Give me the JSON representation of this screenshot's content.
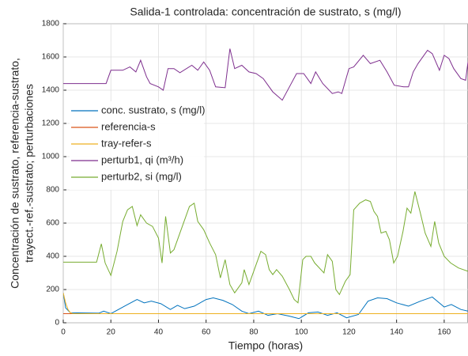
{
  "chart_data": {
    "type": "line",
    "title": "Salida-1 controlada: concentración de sustrato, s (mg/l)",
    "xlabel": "Tiempo (horas)",
    "ylabel": [
      "Concentración de sustrato, referencia-sustrato,",
      "trayect.-ref.-sustrato; perturbaciones"
    ],
    "xlim": [
      0,
      170
    ],
    "xticks": [
      0,
      20,
      40,
      60,
      80,
      100,
      120,
      140,
      160
    ],
    "ylim": [
      0,
      1800
    ],
    "yticks": [
      0,
      200,
      400,
      600,
      800,
      1000,
      1200,
      1400,
      1600,
      1800
    ],
    "grid": true,
    "legend": "upper left",
    "series": [
      {
        "name": "conc. sustrato, s (mg/l)",
        "color": "#0072bd",
        "x": [
          0,
          1,
          3,
          15,
          17,
          20,
          27,
          31,
          34,
          37,
          41,
          45,
          48,
          51,
          55,
          60,
          63,
          67,
          71,
          75,
          78,
          82,
          86,
          90,
          95,
          99,
          103,
          107,
          111,
          115,
          119,
          124,
          128,
          132,
          136,
          140,
          145,
          150,
          155,
          160,
          163,
          167,
          170
        ],
        "values": [
          180,
          90,
          60,
          58,
          70,
          55,
          110,
          140,
          120,
          130,
          115,
          80,
          105,
          85,
          100,
          140,
          150,
          135,
          110,
          70,
          55,
          70,
          45,
          55,
          40,
          25,
          60,
          65,
          45,
          60,
          30,
          50,
          130,
          150,
          145,
          120,
          100,
          130,
          155,
          95,
          110,
          80,
          70
        ]
      },
      {
        "name": "referencia-s",
        "color": "#d95319",
        "x": [
          0,
          170
        ],
        "values": [
          55,
          55
        ]
      },
      {
        "name": "tray-refer-s",
        "color": "#edb120",
        "x": [
          0,
          1,
          2,
          3,
          4,
          170
        ],
        "values": [
          180,
          120,
          80,
          60,
          55,
          55
        ]
      },
      {
        "name": "perturb1, qi (m³/h)",
        "color": "#7e2f8e",
        "x": [
          0,
          18,
          20,
          25,
          28,
          30.5,
          32.5,
          35,
          36.5,
          40,
          42,
          44,
          46.5,
          49,
          54,
          56.5,
          59,
          61.5,
          64,
          68,
          70,
          72,
          75,
          78,
          81,
          84,
          88,
          92,
          95,
          98,
          101,
          104,
          106,
          109,
          113,
          115.5,
          117,
          120,
          122,
          126,
          129,
          133,
          136,
          139,
          143,
          145,
          147,
          149,
          153,
          155,
          158,
          160,
          162,
          164,
          167,
          169,
          170
        ],
        "values": [
          1440,
          1440,
          1520,
          1520,
          1540,
          1510,
          1580,
          1480,
          1440,
          1420,
          1400,
          1530,
          1530,
          1505,
          1550,
          1520,
          1570,
          1520,
          1420,
          1415,
          1650,
          1530,
          1550,
          1510,
          1500,
          1470,
          1390,
          1340,
          1420,
          1500,
          1500,
          1440,
          1510,
          1440,
          1380,
          1390,
          1380,
          1530,
          1540,
          1610,
          1560,
          1580,
          1510,
          1430,
          1420,
          1420,
          1510,
          1560,
          1640,
          1620,
          1520,
          1610,
          1590,
          1530,
          1470,
          1460,
          1570
        ]
      },
      {
        "name": "perturb2, si (mg/l)",
        "color": "#77ac30",
        "x": [
          0,
          14,
          16,
          17.6,
          20,
          22.6,
          25,
          27,
          29,
          31,
          32.5,
          35,
          37.5,
          40,
          41.5,
          43,
          45,
          46.5,
          49,
          51.5,
          53,
          55,
          56.5,
          59,
          61.5,
          64,
          66,
          68,
          70,
          72,
          75,
          76,
          78,
          80,
          83,
          85,
          86.5,
          88,
          89.6,
          92,
          95,
          97,
          98.6,
          100.6,
          102,
          104,
          105.6,
          109.5,
          111,
          113,
          114.5,
          116,
          118.5,
          120.5,
          122,
          124.5,
          127,
          129,
          130.5,
          132,
          133.5,
          135.5,
          137,
          138.8,
          140.4,
          142.7,
          144.4,
          146,
          147.7,
          150,
          152,
          154.4,
          156,
          157.7,
          160,
          162.7,
          166,
          170
        ],
        "values": [
          365,
          365,
          475,
          360,
          285,
          430,
          610,
          680,
          700,
          585,
          650,
          600,
          580,
          510,
          360,
          640,
          420,
          440,
          540,
          640,
          700,
          720,
          610,
          560,
          480,
          410,
          270,
          380,
          230,
          180,
          240,
          320,
          230,
          310,
          430,
          410,
          320,
          290,
          320,
          280,
          200,
          140,
          120,
          380,
          400,
          400,
          360,
          300,
          410,
          370,
          200,
          170,
          250,
          290,
          680,
          720,
          740,
          730,
          670,
          640,
          540,
          550,
          500,
          360,
          400,
          550,
          690,
          660,
          790,
          660,
          540,
          460,
          610,
          480,
          400,
          360,
          330,
          310
        ]
      }
    ]
  }
}
